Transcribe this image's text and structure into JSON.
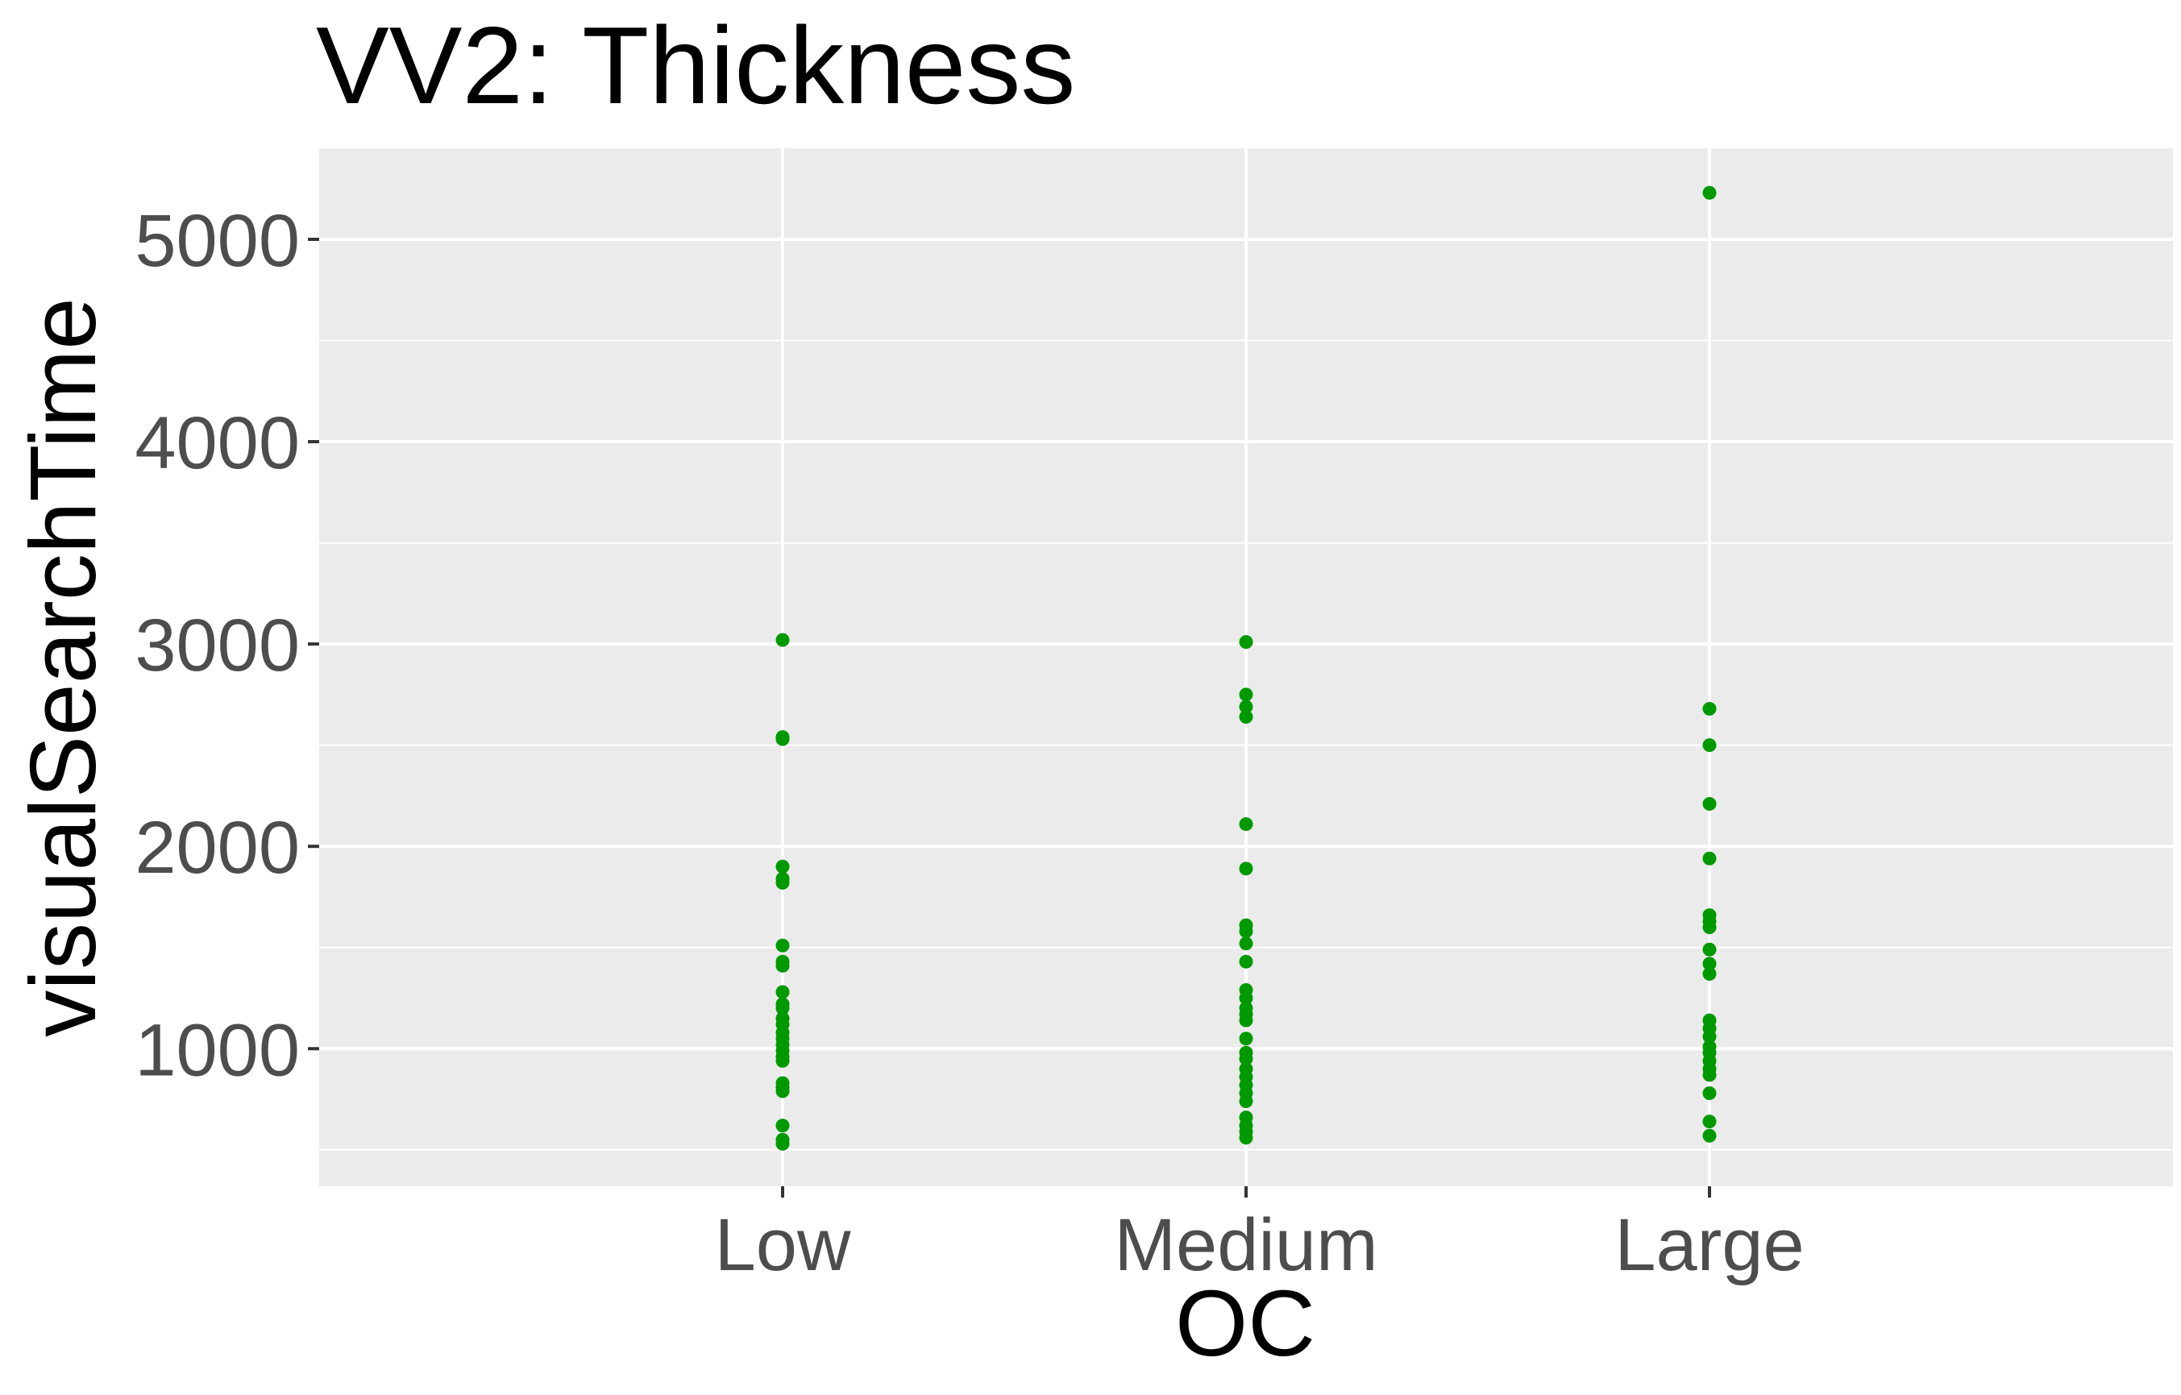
{
  "chart_data": {
    "type": "scatter",
    "title": "VV2: Thickness",
    "xlabel": "OC",
    "ylabel": "visualSearchTime",
    "categories": [
      "Low",
      "Medium",
      "Large"
    ],
    "yticks": [
      "1000",
      "2000",
      "3000",
      "4000",
      "5000"
    ],
    "ylim": [
      320,
      5450
    ],
    "grid": true,
    "point_color": "#009900",
    "panel_color": "#ebebeb",
    "grid_color": "#ffffff",
    "series": [
      {
        "category": "Low",
        "values": [
          3020,
          2540,
          2530,
          1900,
          1840,
          1820,
          1510,
          1430,
          1410,
          1280,
          1220,
          1200,
          1150,
          1120,
          1080,
          1050,
          1020,
          990,
          960,
          940,
          830,
          810,
          790,
          620,
          550,
          530
        ]
      },
      {
        "category": "Medium",
        "values": [
          3010,
          2750,
          2690,
          2640,
          2110,
          1890,
          1610,
          1580,
          1520,
          1430,
          1290,
          1250,
          1200,
          1170,
          1140,
          1050,
          980,
          950,
          900,
          860,
          820,
          780,
          740,
          660,
          620,
          590,
          560
        ]
      },
      {
        "category": "Large",
        "values": [
          5230,
          2680,
          2500,
          2210,
          1940,
          1660,
          1630,
          1600,
          1490,
          1420,
          1370,
          1140,
          1100,
          1060,
          1010,
          980,
          940,
          900,
          870,
          780,
          640,
          570
        ]
      }
    ]
  }
}
